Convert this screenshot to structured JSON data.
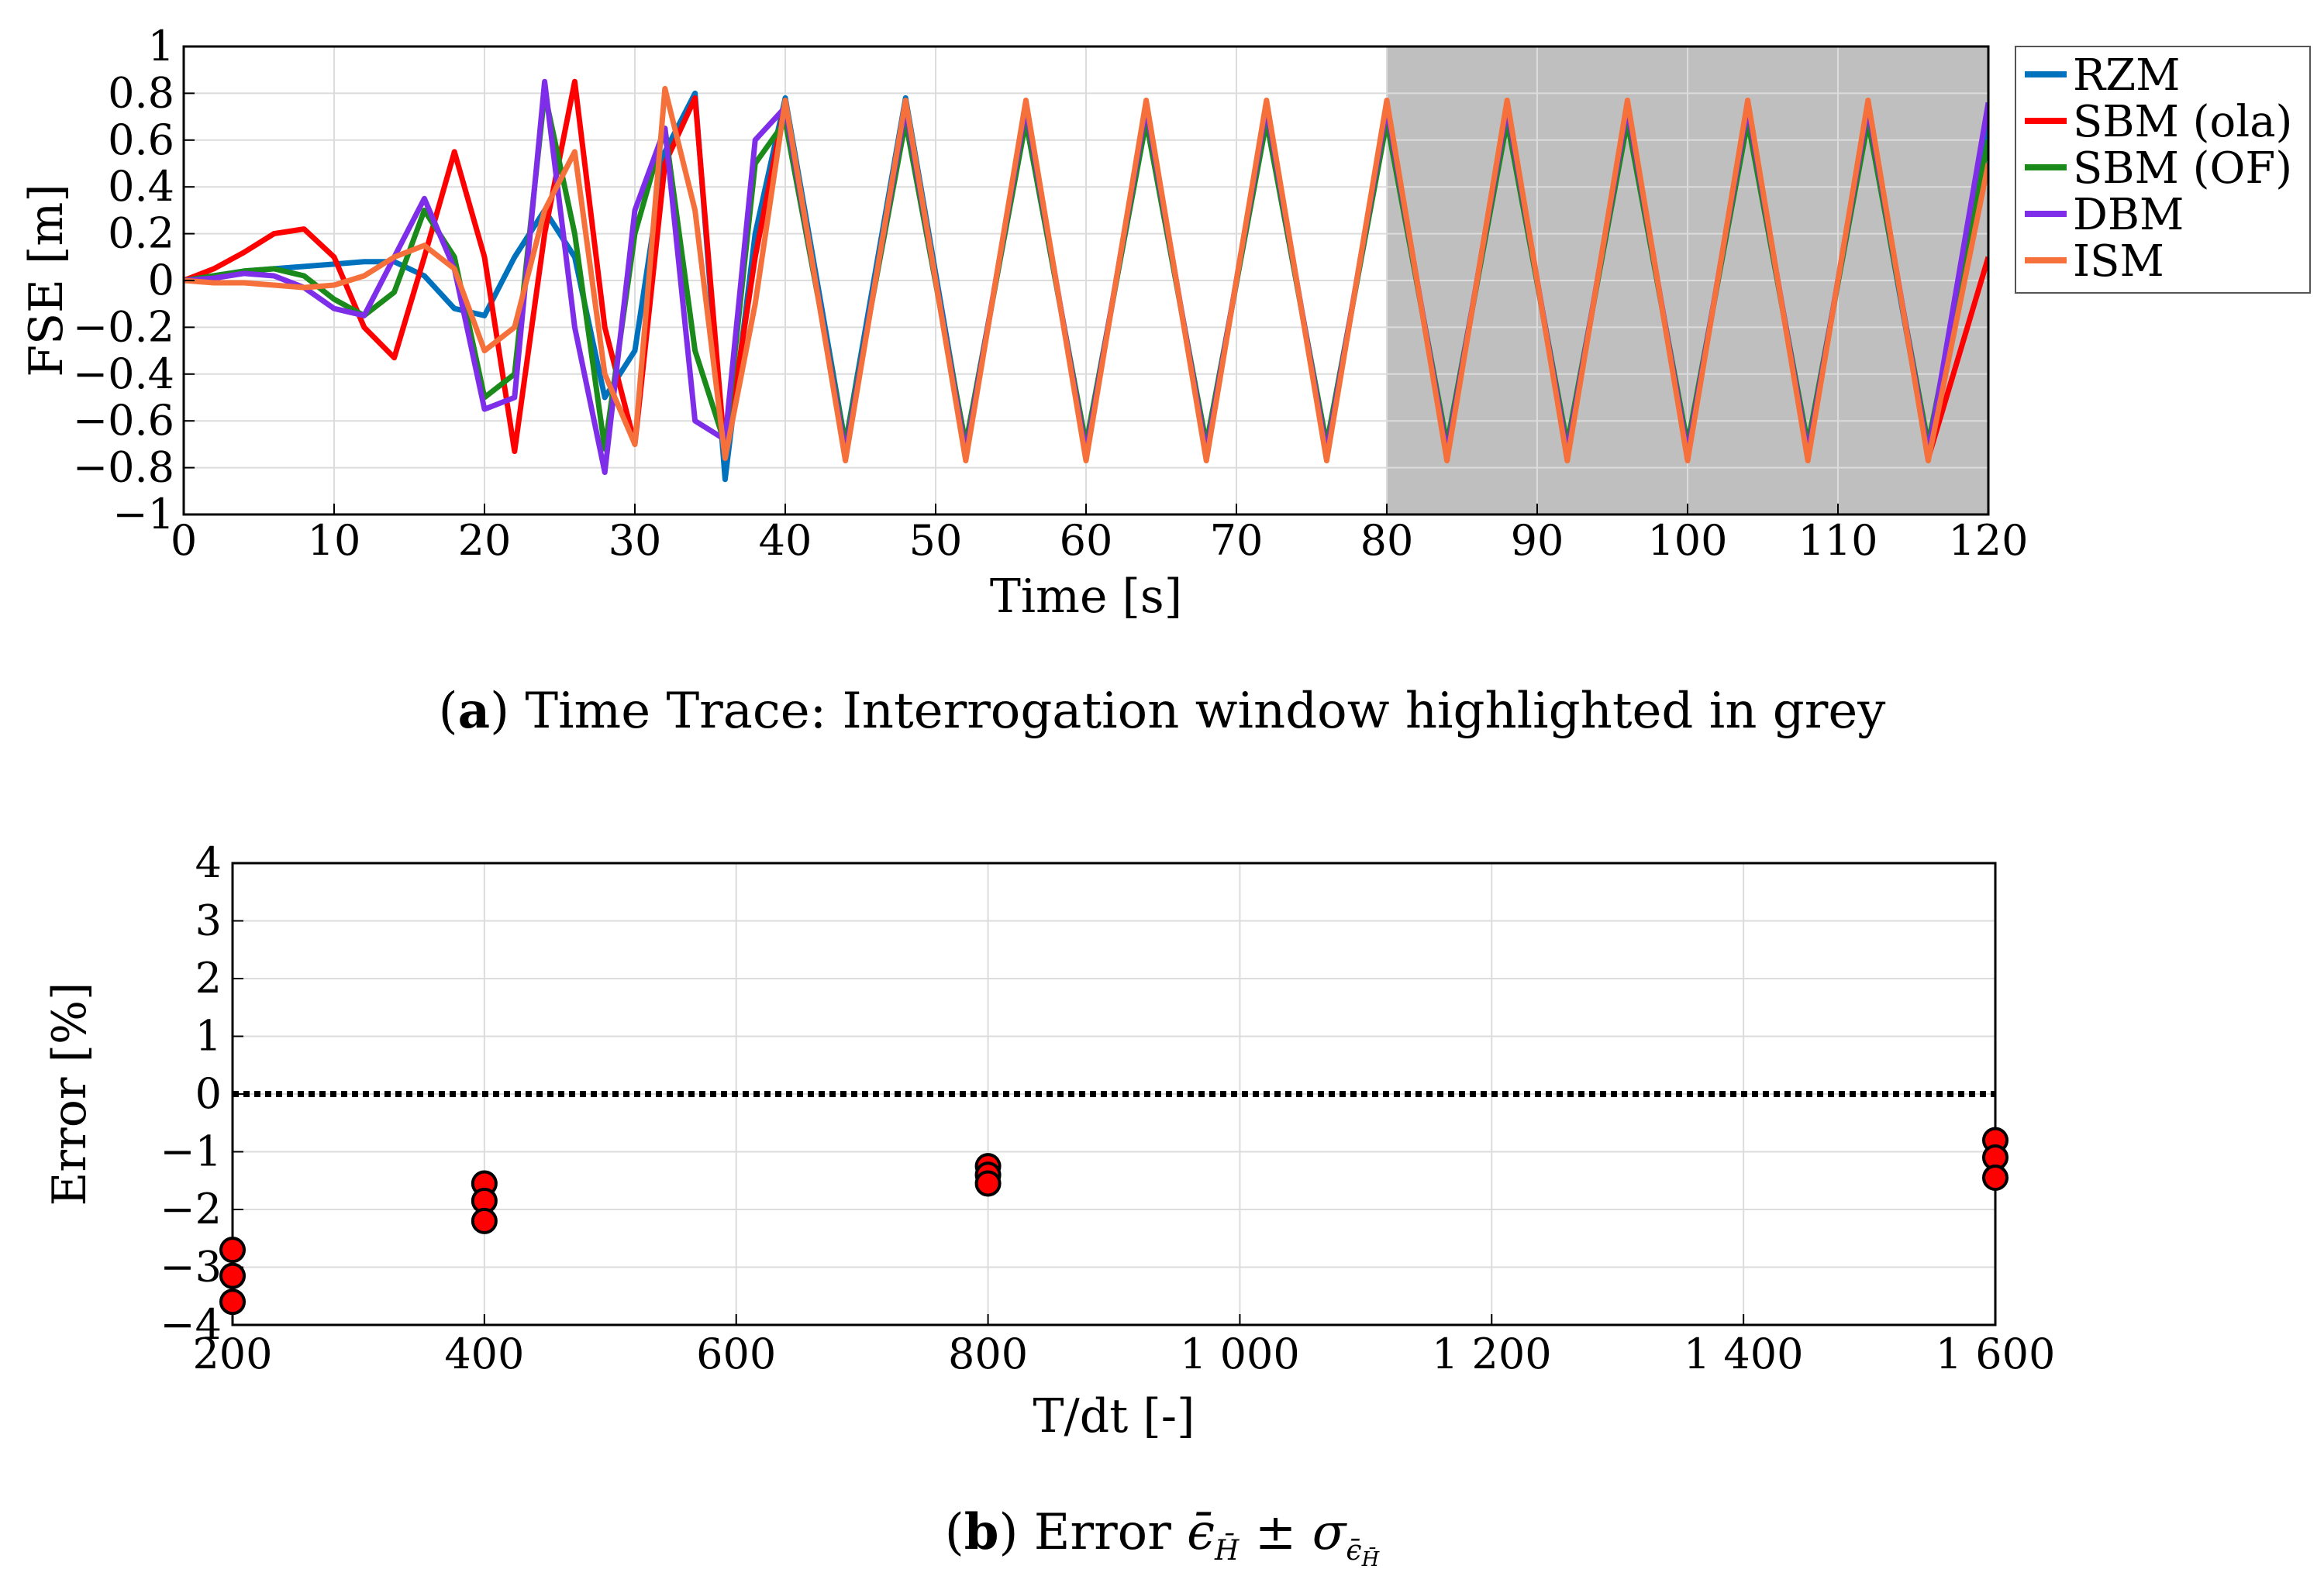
{
  "chart_data": [
    {
      "type": "line",
      "caption_label": "a",
      "caption_text": "Time Trace: Interrogation window highlighted in grey",
      "xlabel": "Time [s]",
      "ylabel": "FSE [m]",
      "xlim": [
        0,
        120
      ],
      "ylim": [
        -1,
        1
      ],
      "xticks": [
        0,
        10,
        20,
        30,
        40,
        50,
        60,
        70,
        80,
        90,
        100,
        110,
        120
      ],
      "yticks": [
        -1,
        -0.8,
        -0.6,
        -0.4,
        -0.2,
        0,
        0.2,
        0.4,
        0.6,
        0.8,
        1
      ],
      "xtick_labels": [
        "0",
        "10",
        "20",
        "30",
        "40",
        "50",
        "60",
        "70",
        "80",
        "90",
        "100",
        "110",
        "120"
      ],
      "ytick_labels": [
        "−1",
        "−0.8",
        "−0.6",
        "−0.4",
        "−0.2",
        "0",
        "0.2",
        "0.4",
        "0.6",
        "0.8",
        "1"
      ],
      "grid": true,
      "legend_position": "outside-right",
      "interrogation_window": [
        80,
        120
      ],
      "window_color": "#bfbfbf",
      "series": [
        {
          "name": "RZM",
          "color": "#0072bd",
          "x": [
            0,
            2,
            4,
            6,
            8,
            10,
            12,
            14,
            16,
            18,
            20,
            22,
            24,
            26,
            28,
            30,
            32,
            34,
            36,
            38,
            40,
            44,
            48,
            52,
            56,
            60,
            64,
            68,
            72,
            76,
            80,
            84,
            88,
            92,
            96,
            100,
            104,
            108,
            112,
            116,
            120
          ],
          "y": [
            0,
            0.02,
            0.04,
            0.05,
            0.06,
            0.07,
            0.08,
            0.08,
            0.02,
            -0.12,
            -0.15,
            0.1,
            0.3,
            0.1,
            -0.5,
            -0.3,
            0.55,
            0.8,
            -0.85,
            0.2,
            0.78,
            -0.7,
            0.78,
            -0.72,
            0.7,
            -0.72,
            0.7,
            -0.72,
            0.7,
            -0.72,
            0.7,
            -0.72,
            0.7,
            -0.72,
            0.7,
            -0.72,
            0.7,
            -0.72,
            0.7,
            -0.74,
            0.7
          ]
        },
        {
          "name": "SBM (ola)",
          "color": "#ff0000",
          "x": [
            0,
            2,
            4,
            6,
            8,
            10,
            12,
            14,
            16,
            18,
            20,
            22,
            24,
            26,
            28,
            30,
            32,
            34,
            36,
            38,
            40,
            44,
            48,
            52,
            56,
            60,
            64,
            68,
            72,
            76,
            80,
            84,
            88,
            92,
            96,
            100,
            104,
            108,
            112,
            116,
            120
          ],
          "y": [
            0,
            0.05,
            0.12,
            0.2,
            0.22,
            0.1,
            -0.2,
            -0.33,
            0.1,
            0.55,
            0.1,
            -0.73,
            0.2,
            0.85,
            -0.2,
            -0.7,
            0.5,
            0.78,
            -0.75,
            0.1,
            0.76,
            -0.76,
            0.76,
            -0.76,
            0.76,
            -0.76,
            0.76,
            -0.76,
            0.76,
            -0.76,
            0.76,
            -0.76,
            0.76,
            -0.76,
            0.76,
            -0.76,
            0.76,
            -0.76,
            0.76,
            -0.76,
            0.1
          ]
        },
        {
          "name": "SBM (OF)",
          "color": "#1a8a1a",
          "x": [
            0,
            2,
            4,
            6,
            8,
            10,
            12,
            14,
            16,
            18,
            20,
            22,
            24,
            26,
            28,
            30,
            32,
            34,
            36,
            38,
            40,
            44,
            48,
            52,
            56,
            60,
            64,
            68,
            72,
            76,
            80,
            84,
            88,
            92,
            96,
            100,
            104,
            108,
            112,
            116,
            120
          ],
          "y": [
            0,
            0.02,
            0.04,
            0.05,
            0.02,
            -0.08,
            -0.15,
            -0.05,
            0.3,
            0.1,
            -0.5,
            -0.4,
            0.8,
            0.2,
            -0.72,
            0.2,
            0.65,
            -0.3,
            -0.7,
            0.5,
            0.68,
            -0.7,
            0.68,
            -0.7,
            0.68,
            -0.7,
            0.68,
            -0.7,
            0.68,
            -0.7,
            0.68,
            -0.7,
            0.68,
            -0.7,
            0.68,
            -0.7,
            0.68,
            -0.7,
            0.68,
            -0.7,
            0.6
          ]
        },
        {
          "name": "DBM",
          "color": "#7e2ee8",
          "x": [
            0,
            2,
            4,
            6,
            8,
            10,
            12,
            14,
            16,
            18,
            20,
            22,
            24,
            26,
            28,
            30,
            32,
            34,
            36,
            38,
            40,
            44,
            48,
            52,
            56,
            60,
            64,
            68,
            72,
            76,
            80,
            84,
            88,
            92,
            96,
            100,
            104,
            108,
            112,
            116,
            120
          ],
          "y": [
            0,
            0.01,
            0.03,
            0.02,
            -0.03,
            -0.12,
            -0.15,
            0.1,
            0.35,
            0.05,
            -0.55,
            -0.5,
            0.85,
            -0.2,
            -0.82,
            0.3,
            0.65,
            -0.6,
            -0.68,
            0.6,
            0.74,
            -0.74,
            0.74,
            -0.74,
            0.74,
            -0.74,
            0.74,
            -0.74,
            0.74,
            -0.74,
            0.74,
            -0.74,
            0.74,
            -0.74,
            0.74,
            -0.74,
            0.74,
            -0.74,
            0.74,
            -0.74,
            0.76
          ]
        },
        {
          "name": "ISM",
          "color": "#f5703a",
          "x": [
            0,
            2,
            4,
            6,
            8,
            10,
            12,
            14,
            16,
            18,
            20,
            22,
            24,
            26,
            28,
            30,
            32,
            34,
            36,
            38,
            40,
            44,
            48,
            52,
            56,
            60,
            64,
            68,
            72,
            76,
            80,
            84,
            88,
            92,
            96,
            100,
            104,
            108,
            112,
            116,
            120
          ],
          "y": [
            0,
            -0.01,
            -0.01,
            -0.02,
            -0.03,
            -0.02,
            0.02,
            0.1,
            0.15,
            0.05,
            -0.3,
            -0.2,
            0.3,
            0.55,
            -0.4,
            -0.7,
            0.82,
            0.3,
            -0.76,
            -0.1,
            0.77,
            -0.77,
            0.77,
            -0.77,
            0.77,
            -0.77,
            0.77,
            -0.77,
            0.77,
            -0.77,
            0.77,
            -0.77,
            0.77,
            -0.77,
            0.77,
            -0.77,
            0.77,
            -0.77,
            0.77,
            -0.77,
            0.5
          ]
        }
      ]
    },
    {
      "type": "scatter",
      "caption_label": "b",
      "caption_text": "Error",
      "caption_math": "ϵ̄",
      "caption_math_sub": "H̄",
      "caption_pm": "±",
      "caption_sigma": "σ",
      "caption_sigma_sub": "ϵ̄",
      "caption_sigma_subsub": "H̄",
      "xlabel": "T/dt [-]",
      "ylabel": "Error [%]",
      "xlim": [
        200,
        1600
      ],
      "ylim": [
        -4,
        4
      ],
      "xticks": [
        200,
        400,
        600,
        800,
        1000,
        1200,
        1400,
        1600
      ],
      "yticks": [
        -4,
        -3,
        -2,
        -1,
        0,
        1,
        2,
        3,
        4
      ],
      "xtick_labels": [
        "200",
        "400",
        "600",
        "800",
        "1 000",
        "1 200",
        "1 400",
        "1 600"
      ],
      "ytick_labels": [
        "−4",
        "−3",
        "−2",
        "−1",
        "0",
        "1",
        "2",
        "3",
        "4"
      ],
      "grid": true,
      "reference_line_y": 0,
      "marker_color": "#ff0000",
      "x": [
        200,
        200,
        200,
        400,
        400,
        400,
        800,
        800,
        800,
        1600,
        1600,
        1600
      ],
      "y": [
        -2.7,
        -3.15,
        -3.6,
        -1.55,
        -1.85,
        -2.2,
        -1.25,
        -1.4,
        -1.55,
        -0.8,
        -1.1,
        -1.45
      ]
    }
  ]
}
